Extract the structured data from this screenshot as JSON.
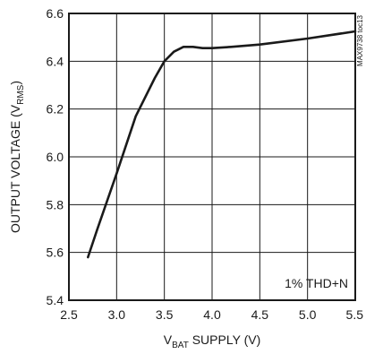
{
  "chart_data": {
    "type": "line",
    "xlabel": {
      "base": "V",
      "subscript": "BAT",
      "rest": " SUPPLY (V)"
    },
    "ylabel": {
      "base": "OUTPUT VOLTAGE (V",
      "subscript": "RMS",
      "rest": ")"
    },
    "xlim": [
      2.5,
      5.5
    ],
    "ylim": [
      5.4,
      6.6
    ],
    "xticks": [
      "2.5",
      "3.0",
      "3.5",
      "4.0",
      "4.5",
      "5.0",
      "5.5"
    ],
    "yticks": [
      "5.4",
      "5.6",
      "5.8",
      "6.0",
      "6.2",
      "6.4",
      "6.6"
    ],
    "grid": true,
    "annotation": "1% THD+N",
    "side_code": "MAX9738 toc13",
    "series": [
      {
        "x": [
          2.7,
          2.8,
          3.0,
          3.2,
          3.4,
          3.5,
          3.6,
          3.7,
          3.8,
          3.9,
          4.0,
          4.2,
          4.5,
          5.0,
          5.5
        ],
        "y": [
          5.58,
          5.7,
          5.93,
          6.17,
          6.33,
          6.4,
          6.44,
          6.46,
          6.46,
          6.455,
          6.455,
          6.46,
          6.47,
          6.495,
          6.525
        ]
      }
    ]
  }
}
